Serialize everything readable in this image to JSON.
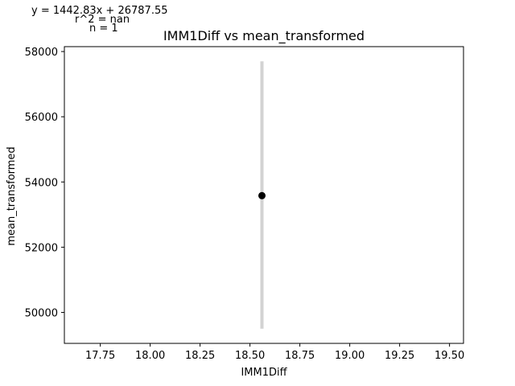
{
  "chart_data": {
    "type": "scatter",
    "title": "IMM1Diff vs mean_transformed",
    "xlabel": "IMM1Diff",
    "ylabel": "mean_transformed",
    "xlim": [
      17.57,
      19.57
    ],
    "ylim": [
      49050,
      58150
    ],
    "xticks": [
      17.75,
      18.0,
      18.25,
      18.5,
      18.75,
      19.0,
      19.25,
      19.5
    ],
    "xtick_labels": [
      "17.75",
      "18.00",
      "18.25",
      "18.50",
      "18.75",
      "19.00",
      "19.25",
      "19.50"
    ],
    "yticks": [
      50000,
      52000,
      54000,
      56000,
      58000
    ],
    "ytick_labels": [
      "50000",
      "52000",
      "54000",
      "56000",
      "58000"
    ],
    "points": [
      {
        "x": 18.56,
        "y": 53580
      }
    ],
    "error_bars": [
      {
        "x": 18.56,
        "low": 49500,
        "high": 57700
      }
    ],
    "annotations": [
      "y = 1442.83x + 26787.55",
      "r^2 = nan",
      "n = 1"
    ],
    "grid": false,
    "colors": {
      "point": "#000000",
      "error_bar": "#d3d3d3",
      "axes": "#000000"
    }
  }
}
